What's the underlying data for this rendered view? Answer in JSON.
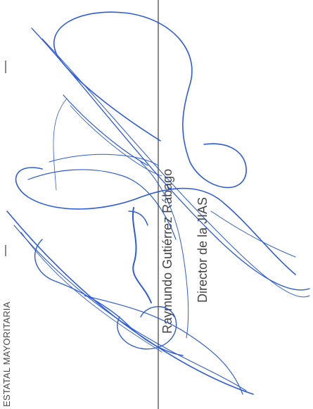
{
  "document": {
    "entity_line": "ESTATAL MAYORITARIA",
    "signatory_name": "Raymundo Gutiérrez Rábago",
    "signatory_role": "Director de la JIAS",
    "signature_color": "#1d4fd6",
    "line_color": "#8a8a8a"
  }
}
